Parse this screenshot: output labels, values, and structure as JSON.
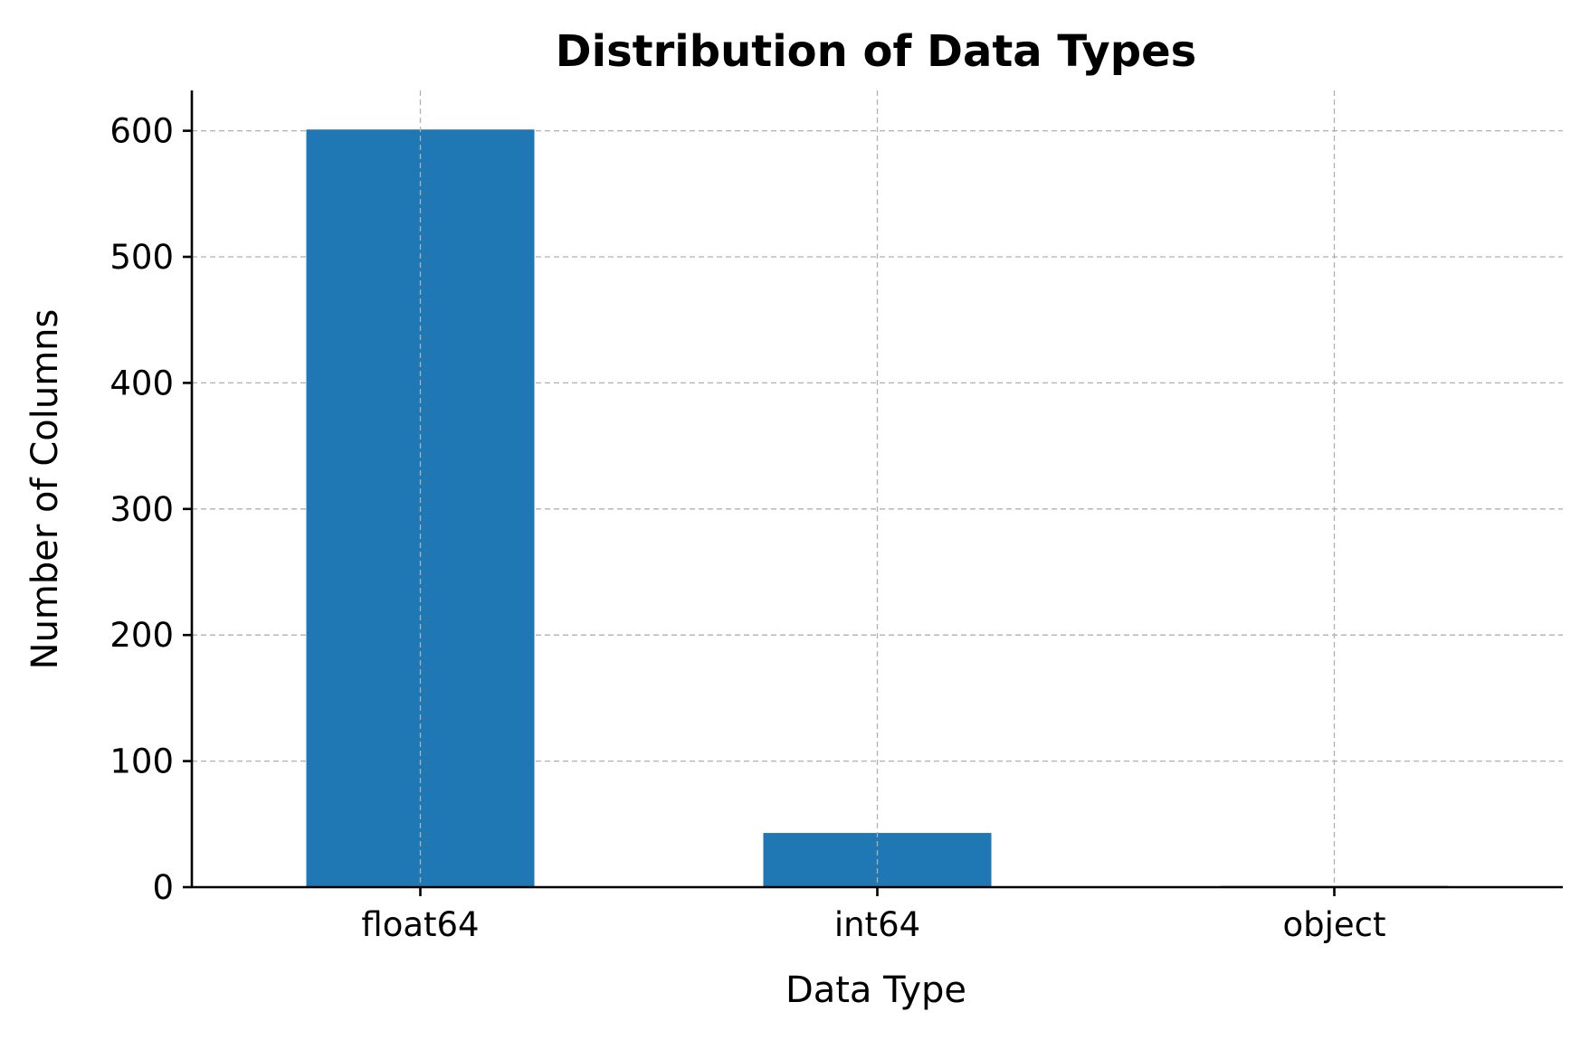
{
  "chart_data": {
    "type": "bar",
    "title": "Distribution of Data Types",
    "xlabel": "Data Type",
    "ylabel": "Number of Columns",
    "categories": [
      "float64",
      "int64",
      "object"
    ],
    "values": [
      601,
      43,
      1
    ],
    "ylim": [
      0,
      632
    ],
    "yticks": [
      0,
      100,
      200,
      300,
      400,
      500,
      600
    ],
    "grid": true,
    "legend": "none",
    "bar_color": "#1f77b4"
  }
}
